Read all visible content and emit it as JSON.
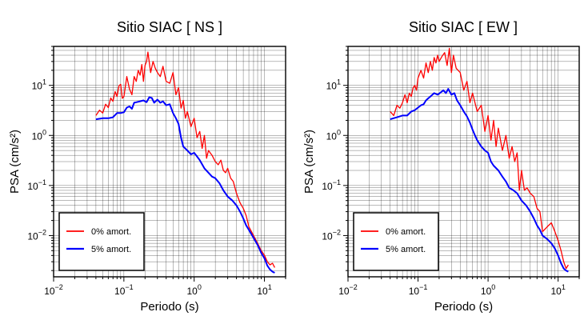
{
  "chart_data": [
    {
      "type": "line",
      "title": "Sitio SIAC [ NS ]",
      "xlabel": "Periodo (s)",
      "ylabel": "PSA (cm/s²)",
      "x_scale": "log",
      "y_scale": "log",
      "xlim": [
        0.01,
        20
      ],
      "ylim": [
        0.0015,
        60
      ],
      "x_ticks": [
        {
          "base": "10",
          "exp": "−2"
        },
        {
          "base": "10",
          "exp": "−1"
        },
        {
          "base": "10",
          "exp": "0"
        },
        {
          "base": "10",
          "exp": "1"
        }
      ],
      "y_ticks": [
        {
          "base": "10",
          "exp": "−2"
        },
        {
          "base": "10",
          "exp": "−1"
        },
        {
          "base": "10",
          "exp": "0"
        },
        {
          "base": "10",
          "exp": "1"
        }
      ],
      "grid": true,
      "legend_position": "bottom-left",
      "series": [
        {
          "name": "0% amort.",
          "color": "#ff0000",
          "x": [
            0.04,
            0.045,
            0.05,
            0.055,
            0.06,
            0.065,
            0.07,
            0.075,
            0.08,
            0.085,
            0.09,
            0.095,
            0.1,
            0.11,
            0.12,
            0.13,
            0.14,
            0.15,
            0.16,
            0.17,
            0.18,
            0.19,
            0.2,
            0.21,
            0.22,
            0.24,
            0.26,
            0.28,
            0.3,
            0.33,
            0.36,
            0.4,
            0.45,
            0.5,
            0.55,
            0.6,
            0.65,
            0.7,
            0.75,
            0.8,
            0.9,
            1.0,
            1.1,
            1.2,
            1.3,
            1.4,
            1.5,
            1.6,
            1.8,
            2.0,
            2.2,
            2.4,
            2.6,
            2.8,
            3.0,
            3.3,
            3.6,
            4.0,
            4.5,
            5.0,
            5.5,
            6.0,
            7.0,
            8.0,
            9.0,
            10.0,
            11.0,
            12.0,
            13.0,
            14.0
          ],
          "y": [
            2.5,
            3.2,
            2.8,
            4.2,
            3.6,
            5.6,
            4.8,
            7.5,
            6.0,
            9.8,
            10.5,
            5.5,
            6.0,
            15.0,
            8.5,
            6.5,
            15.0,
            12.0,
            20.0,
            16.0,
            26.0,
            12.0,
            25.0,
            30.0,
            46.0,
            18.0,
            30.0,
            22.0,
            18.0,
            15.0,
            24.0,
            12.0,
            11.0,
            18.0,
            6.5,
            9.0,
            3.5,
            5.0,
            2.2,
            3.0,
            1.5,
            2.2,
            0.9,
            1.2,
            0.55,
            1.0,
            0.35,
            0.5,
            0.4,
            0.3,
            0.26,
            0.32,
            0.2,
            0.18,
            0.22,
            0.14,
            0.12,
            0.07,
            0.045,
            0.035,
            0.025,
            0.015,
            0.01,
            0.007,
            0.005,
            0.004,
            0.003,
            0.0026,
            0.0028,
            0.0023
          ]
        },
        {
          "name": "5% amort.",
          "color": "#0000ff",
          "x": [
            0.04,
            0.05,
            0.06,
            0.07,
            0.08,
            0.09,
            0.1,
            0.11,
            0.12,
            0.13,
            0.14,
            0.15,
            0.17,
            0.19,
            0.21,
            0.23,
            0.25,
            0.27,
            0.3,
            0.33,
            0.36,
            0.4,
            0.45,
            0.5,
            0.55,
            0.6,
            0.65,
            0.7,
            0.8,
            0.9,
            1.0,
            1.1,
            1.2,
            1.4,
            1.6,
            1.8,
            2.0,
            2.3,
            2.6,
            3.0,
            3.5,
            4.0,
            4.5,
            5.0,
            5.5,
            6.0,
            7.0,
            8.0,
            9.0,
            10.0,
            11.0,
            12.0,
            13.0,
            14.0
          ],
          "y": [
            2.1,
            2.2,
            2.2,
            2.3,
            2.8,
            2.8,
            2.9,
            3.6,
            3.8,
            3.4,
            4.5,
            4.6,
            4.8,
            5.0,
            4.6,
            5.8,
            5.6,
            4.5,
            5.2,
            4.5,
            4.8,
            4.0,
            4.2,
            2.8,
            2.2,
            1.7,
            0.9,
            0.6,
            0.5,
            0.42,
            0.45,
            0.38,
            0.32,
            0.22,
            0.18,
            0.15,
            0.14,
            0.11,
            0.08,
            0.06,
            0.05,
            0.04,
            0.03,
            0.022,
            0.016,
            0.013,
            0.009,
            0.0065,
            0.0045,
            0.0035,
            0.0025,
            0.0021,
            0.0019,
            0.0018
          ]
        }
      ]
    },
    {
      "type": "line",
      "title": "Sitio SIAC [ EW ]",
      "xlabel": "Periodo (s)",
      "ylabel": "PSA (cm/s²)",
      "x_scale": "log",
      "y_scale": "log",
      "xlim": [
        0.01,
        20
      ],
      "ylim": [
        0.0015,
        60
      ],
      "x_ticks": [
        {
          "base": "10",
          "exp": "−2"
        },
        {
          "base": "10",
          "exp": "−1"
        },
        {
          "base": "10",
          "exp": "0"
        },
        {
          "base": "10",
          "exp": "1"
        }
      ],
      "y_ticks": [
        {
          "base": "10",
          "exp": "−2"
        },
        {
          "base": "10",
          "exp": "−1"
        },
        {
          "base": "10",
          "exp": "0"
        },
        {
          "base": "10",
          "exp": "1"
        }
      ],
      "grid": true,
      "legend_position": "bottom-left",
      "series": [
        {
          "name": "0% amort.",
          "color": "#ff0000",
          "x": [
            0.04,
            0.045,
            0.05,
            0.055,
            0.06,
            0.065,
            0.07,
            0.075,
            0.08,
            0.085,
            0.09,
            0.095,
            0.1,
            0.11,
            0.12,
            0.13,
            0.14,
            0.15,
            0.16,
            0.17,
            0.18,
            0.19,
            0.2,
            0.22,
            0.24,
            0.26,
            0.28,
            0.3,
            0.32,
            0.35,
            0.4,
            0.45,
            0.5,
            0.55,
            0.6,
            0.7,
            0.8,
            0.9,
            1.0,
            1.1,
            1.2,
            1.3,
            1.4,
            1.6,
            1.8,
            2.0,
            2.2,
            2.4,
            2.6,
            2.8,
            3.0,
            3.3,
            3.6,
            4.0,
            4.5,
            5.0,
            5.5,
            6.0,
            7.0,
            8.0,
            9.0,
            10.0,
            11.0,
            12.0,
            13.0,
            14.0
          ],
          "y": [
            3.0,
            2.5,
            4.0,
            3.5,
            4.5,
            6.5,
            4.5,
            7.0,
            6.0,
            9.0,
            10.0,
            8.0,
            14.0,
            20.0,
            14.0,
            28.0,
            18.0,
            30.0,
            20.0,
            36.0,
            28.0,
            40.0,
            30.0,
            38.0,
            45.0,
            25.0,
            55.0,
            18.0,
            40.0,
            22.0,
            18.0,
            8.0,
            12.0,
            4.5,
            7.0,
            3.0,
            4.0,
            1.2,
            2.5,
            0.8,
            2.0,
            0.6,
            1.4,
            0.5,
            1.0,
            0.35,
            0.6,
            0.3,
            0.45,
            0.08,
            0.2,
            0.08,
            0.09,
            0.07,
            0.06,
            0.035,
            0.03,
            0.012,
            0.015,
            0.018,
            0.012,
            0.008,
            0.005,
            0.003,
            0.0022,
            0.0026
          ]
        },
        {
          "name": "5% amort.",
          "color": "#0000ff",
          "x": [
            0.04,
            0.05,
            0.06,
            0.07,
            0.08,
            0.09,
            0.1,
            0.11,
            0.12,
            0.13,
            0.14,
            0.15,
            0.17,
            0.19,
            0.21,
            0.23,
            0.25,
            0.27,
            0.3,
            0.33,
            0.36,
            0.4,
            0.45,
            0.5,
            0.55,
            0.6,
            0.65,
            0.7,
            0.8,
            0.9,
            1.0,
            1.1,
            1.2,
            1.4,
            1.6,
            1.8,
            2.0,
            2.3,
            2.6,
            3.0,
            3.5,
            4.0,
            4.5,
            5.0,
            5.5,
            6.0,
            7.0,
            8.0,
            9.0,
            10.0,
            11.0,
            12.0,
            13.0,
            14.0
          ],
          "y": [
            2.1,
            2.3,
            2.5,
            2.5,
            3.0,
            3.2,
            3.6,
            4.0,
            4.2,
            5.0,
            5.5,
            6.0,
            7.0,
            6.5,
            7.2,
            8.0,
            7.0,
            8.5,
            6.5,
            7.0,
            5.0,
            4.0,
            3.0,
            2.4,
            1.8,
            1.3,
            1.0,
            0.8,
            0.6,
            0.5,
            0.45,
            0.3,
            0.25,
            0.2,
            0.15,
            0.12,
            0.09,
            0.08,
            0.07,
            0.05,
            0.04,
            0.03,
            0.022,
            0.016,
            0.013,
            0.01,
            0.0085,
            0.007,
            0.0055,
            0.004,
            0.0028,
            0.0022,
            0.002,
            0.0019
          ]
        }
      ]
    }
  ]
}
